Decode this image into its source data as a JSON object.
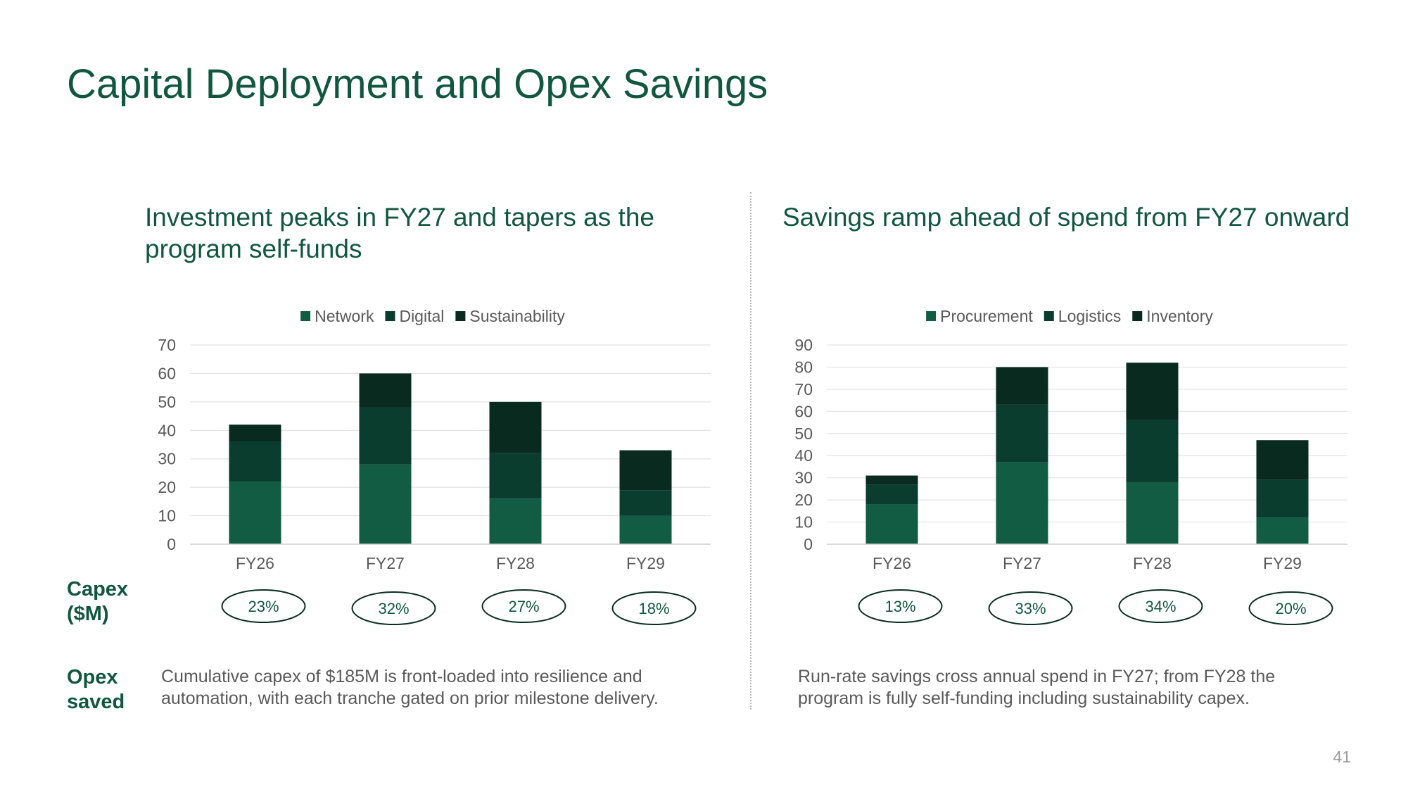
{
  "slide": {
    "title": "Capital Deployment and Opex Savings",
    "page_number": "41"
  },
  "row_labels": {
    "capex": "Capex\n($M)",
    "opex": "Opex\nsaved"
  },
  "notes": {
    "left": "Cumulative capex of $185M is front-loaded into resilience and automation, with each tranche gated on prior milestone delivery.",
    "right": "Run-rate savings cross annual spend in FY27; from FY28 the program is fully self-funding including sustainability capex."
  },
  "colors": {
    "series": [
      "#115c42",
      "#0b3d2e",
      "#082a1f"
    ],
    "title": "#115740",
    "axis_text": "#595959",
    "grid": "#e3e3e3"
  },
  "chart_data": [
    {
      "type": "bar",
      "stacked": true,
      "title": "Investment peaks in FY27 and tapers as the program self-funds",
      "xlabel": "",
      "ylabel": "",
      "categories": [
        "FY26",
        "FY27",
        "FY28",
        "FY29"
      ],
      "series": [
        {
          "name": "Network",
          "values": [
            22,
            28,
            16,
            10
          ]
        },
        {
          "name": "Digital",
          "values": [
            14,
            20,
            16,
            9
          ]
        },
        {
          "name": "Sustainability",
          "values": [
            6,
            12,
            18,
            14
          ]
        }
      ],
      "ylim": [
        0,
        70
      ],
      "yticks": [
        0,
        10,
        20,
        30,
        40,
        50,
        60,
        70
      ],
      "grid": true,
      "legend": "top-center",
      "percent_labels": [
        "23%",
        "32%",
        "27%",
        "18%"
      ]
    },
    {
      "type": "bar",
      "stacked": true,
      "title": "Savings ramp ahead of spend from FY27 onward",
      "xlabel": "",
      "ylabel": "",
      "categories": [
        "FY26",
        "FY27",
        "FY28",
        "FY29"
      ],
      "series": [
        {
          "name": "Procurement",
          "values": [
            18,
            37,
            28,
            12
          ]
        },
        {
          "name": "Logistics",
          "values": [
            9,
            26,
            28,
            17
          ]
        },
        {
          "name": "Inventory",
          "values": [
            4,
            17,
            26,
            18
          ]
        }
      ],
      "ylim": [
        0,
        90
      ],
      "yticks": [
        0,
        10,
        20,
        30,
        40,
        50,
        60,
        70,
        80,
        90
      ],
      "grid": true,
      "legend": "top-center",
      "percent_labels": [
        "13%",
        "33%",
        "34%",
        "20%"
      ]
    }
  ]
}
